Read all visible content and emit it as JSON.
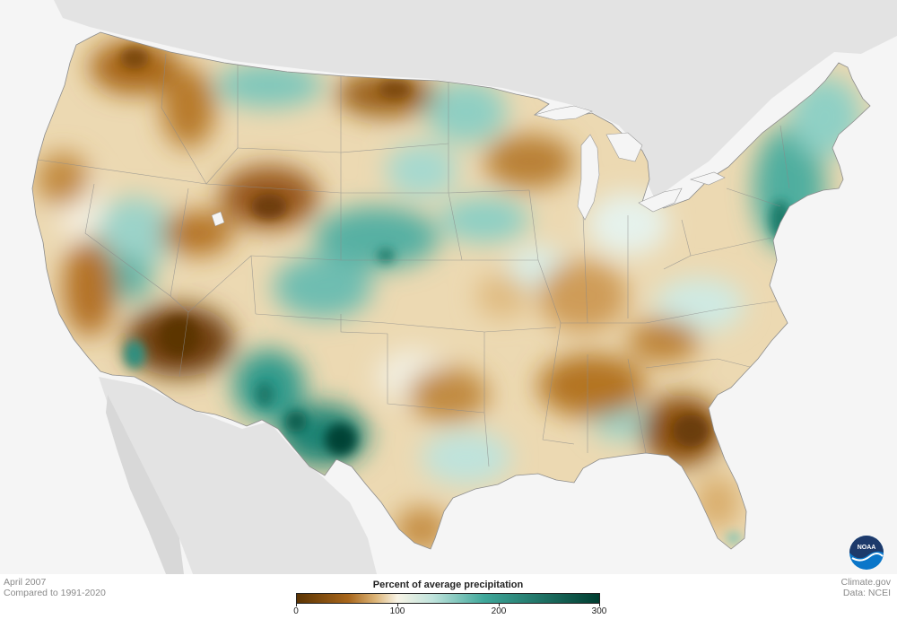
{
  "map": {
    "date": "April 2007",
    "baseline": "Compared to 1991-2020",
    "credit": "Climate.gov",
    "source": "Data: NCEI",
    "logo_text": "NOAA"
  },
  "legend": {
    "title": "Percent of average precipitation",
    "ticks": [
      "0",
      "100",
      "200",
      "300"
    ],
    "range": [
      0,
      300
    ],
    "colors": {
      "very_dry": "#5b3403",
      "dry": "#a8661b",
      "mild_dry": "#dcb477",
      "normal": "#f8f4e6",
      "mild_wet": "#bfe3dc",
      "wet": "#3fa79a",
      "very_wet": "#003d30"
    }
  }
}
